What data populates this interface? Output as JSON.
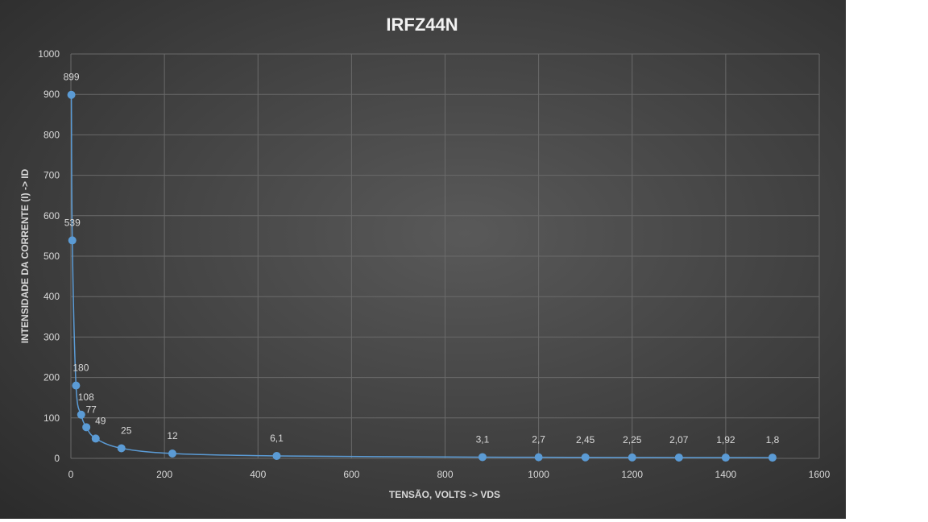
{
  "chart_data": {
    "type": "scatter",
    "title": "IRFZ44N",
    "xlabel": "TENSÃO, VOLTS -> VDS",
    "ylabel": "INTENSIDADE DA CORRENTE (I) -> ID",
    "xlim": [
      0,
      1600
    ],
    "ylim": [
      0,
      1000
    ],
    "xticks": [
      0,
      200,
      400,
      600,
      800,
      1000,
      1200,
      1400,
      1600
    ],
    "yticks": [
      0,
      100,
      200,
      300,
      400,
      500,
      600,
      700,
      800,
      900,
      1000
    ],
    "grid": true,
    "line_style": "smooth",
    "series": [
      {
        "color": "#5b9bd5",
        "x": [
          1,
          3,
          11,
          22,
          33,
          53,
          108,
          217,
          440,
          880,
          1000,
          1100,
          1200,
          1300,
          1400,
          1500
        ],
        "y": [
          899,
          539,
          180,
          108,
          77,
          49,
          25,
          12,
          6.1,
          3.1,
          2.7,
          2.45,
          2.25,
          2.07,
          1.92,
          1.8
        ],
        "labels": [
          "899",
          "539",
          "180",
          "108",
          "77",
          "49",
          "25",
          "12",
          "6,1",
          "3,1",
          "2,7",
          "2,45",
          "2,25",
          "2,07",
          "1,92",
          "1,8"
        ]
      }
    ]
  }
}
